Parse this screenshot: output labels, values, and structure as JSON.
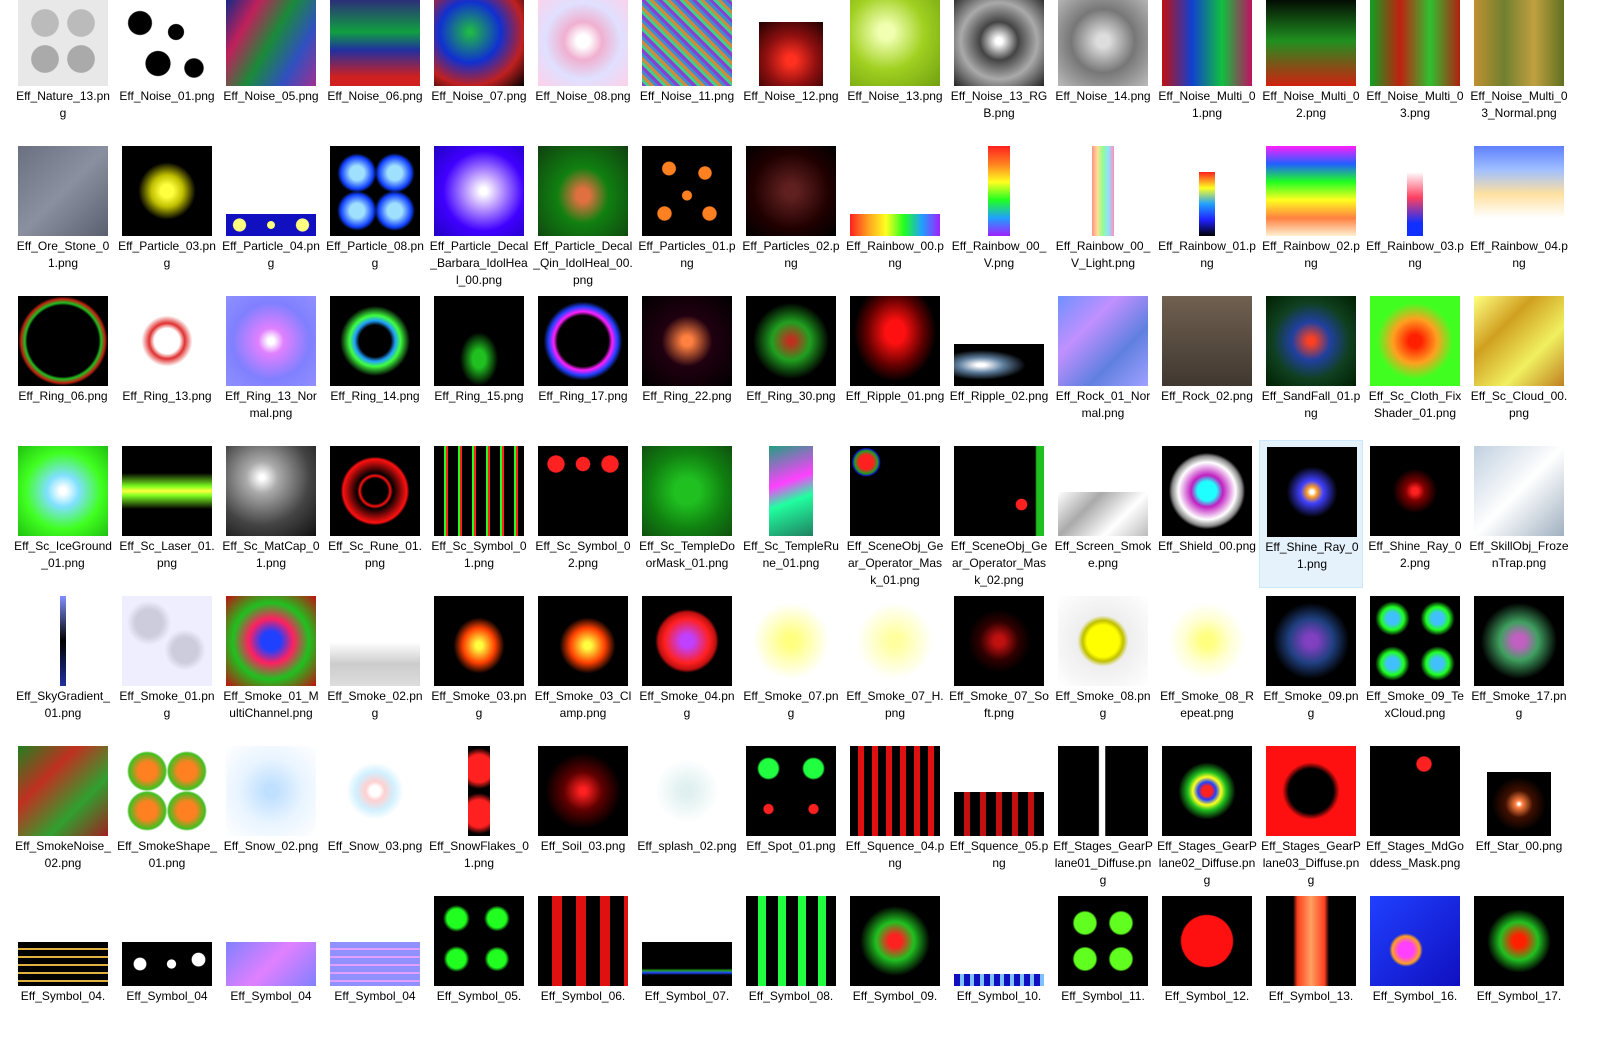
{
  "selected": "Eff_Shine_Ray_01.png",
  "rows": [
    [
      "Eff_Nature_13.png",
      "Eff_Noise_01.png",
      "Eff_Noise_05.png",
      "Eff_Noise_06.png",
      "Eff_Noise_07.png",
      "Eff_Noise_08.png",
      "Eff_Noise_11.png",
      "Eff_Noise_12.png",
      "Eff_Noise_13.png",
      "Eff_Noise_13_RGB.png",
      "Eff_Noise_14.png",
      "Eff_Noise_Multi_01.png",
      "Eff_Noise_Multi_02.png",
      "Eff_Noise_Multi_03.png",
      "Eff_Noise_Multi_03_Normal.png"
    ],
    [
      "Eff_Ore_Stone_01.png",
      "Eff_Particle_03.png",
      "Eff_Particle_04.png",
      "Eff_Particle_08.png",
      "Eff_Particle_Decal_Barbara_IdolHeal_00.png",
      "Eff_Particle_Decal_Qin_IdolHeal_00.png",
      "Eff_Particles_01.png",
      "Eff_Particles_02.png",
      "Eff_Rainbow_00.png",
      "Eff_Rainbow_00_V.png",
      "Eff_Rainbow_00_V_Light.png",
      "Eff_Rainbow_01.png",
      "Eff_Rainbow_02.png",
      "Eff_Rainbow_03.png",
      "Eff_Rainbow_04.png"
    ],
    [
      "Eff_Ring_06.png",
      "Eff_Ring_13.png",
      "Eff_Ring_13_Normal.png",
      "Eff_Ring_14.png",
      "Eff_Ring_15.png",
      "Eff_Ring_17.png",
      "Eff_Ring_22.png",
      "Eff_Ring_30.png",
      "Eff_Ripple_01.png",
      "Eff_Ripple_02.png",
      "Eff_Rock_01_Normal.png",
      "Eff_Rock_02.png",
      "Eff_SandFall_01.png",
      "Eff_Sc_Cloth_FixShader_01.png",
      "Eff_Sc_Cloud_00.png"
    ],
    [
      "Eff_Sc_IceGround_01.png",
      "Eff_Sc_Laser_01.png",
      "Eff_Sc_MatCap_01.png",
      "Eff_Sc_Rune_01.png",
      "Eff_Sc_Symbol_01.png",
      "Eff_Sc_Symbol_02.png",
      "Eff_Sc_TempleDoorMask_01.png",
      "Eff_Sc_TempleRune_01.png",
      "Eff_SceneObj_Gear_Operator_Mask_01.png",
      "Eff_SceneObj_Gear_Operator_Mask_02.png",
      "Eff_Screen_Smoke.png",
      "Eff_Shield_00.png",
      "Eff_Shine_Ray_01.png",
      "Eff_Shine_Ray_02.png",
      "Eff_SkillObj_FrozenTrap.png"
    ],
    [
      "Eff_SkyGradient_01.png",
      "Eff_Smoke_01.png",
      "Eff_Smoke_01_MultiChannel.png",
      "Eff_Smoke_02.png",
      "Eff_Smoke_03.png",
      "Eff_Smoke_03_Clamp.png",
      "Eff_Smoke_04.png",
      "Eff_Smoke_07.png",
      "Eff_Smoke_07_H.png",
      "Eff_Smoke_07_Soft.png",
      "Eff_Smoke_08.png",
      "Eff_Smoke_08_Repeat.png",
      "Eff_Smoke_09.png",
      "Eff_Smoke_09_TexCloud.png",
      "Eff_Smoke_17.png"
    ],
    [
      "Eff_SmokeNoise_02.png",
      "Eff_SmokeShape_01.png",
      "Eff_Snow_02.png",
      "Eff_Snow_03.png",
      "Eff_SnowFlakes_01.png",
      "Eff_Soil_03.png",
      "Eff_splash_02.png",
      "Eff_Spot_01.png",
      "Eff_Squence_04.png",
      "Eff_Squence_05.png",
      "Eff_Stages_GearPlane01_Diffuse.png",
      "Eff_Stages_GearPlane02_Diffuse.png",
      "Eff_Stages_GearPlane03_Diffuse.png",
      "Eff_Stages_MdGoddess_Mask.png",
      "Eff_Star_00.png"
    ],
    [
      "Eff_Symbol_04.",
      "Eff_Symbol_04",
      "Eff_Symbol_04",
      "Eff_Symbol_04",
      "Eff_Symbol_05.",
      "Eff_Symbol_06.",
      "Eff_Symbol_07.",
      "Eff_Symbol_08.",
      "Eff_Symbol_09.",
      "Eff_Symbol_10.",
      "Eff_Symbol_11.",
      "Eff_Symbol_12.",
      "Eff_Symbol_13.",
      "Eff_Symbol_16.",
      "Eff_Symbol_17."
    ]
  ]
}
